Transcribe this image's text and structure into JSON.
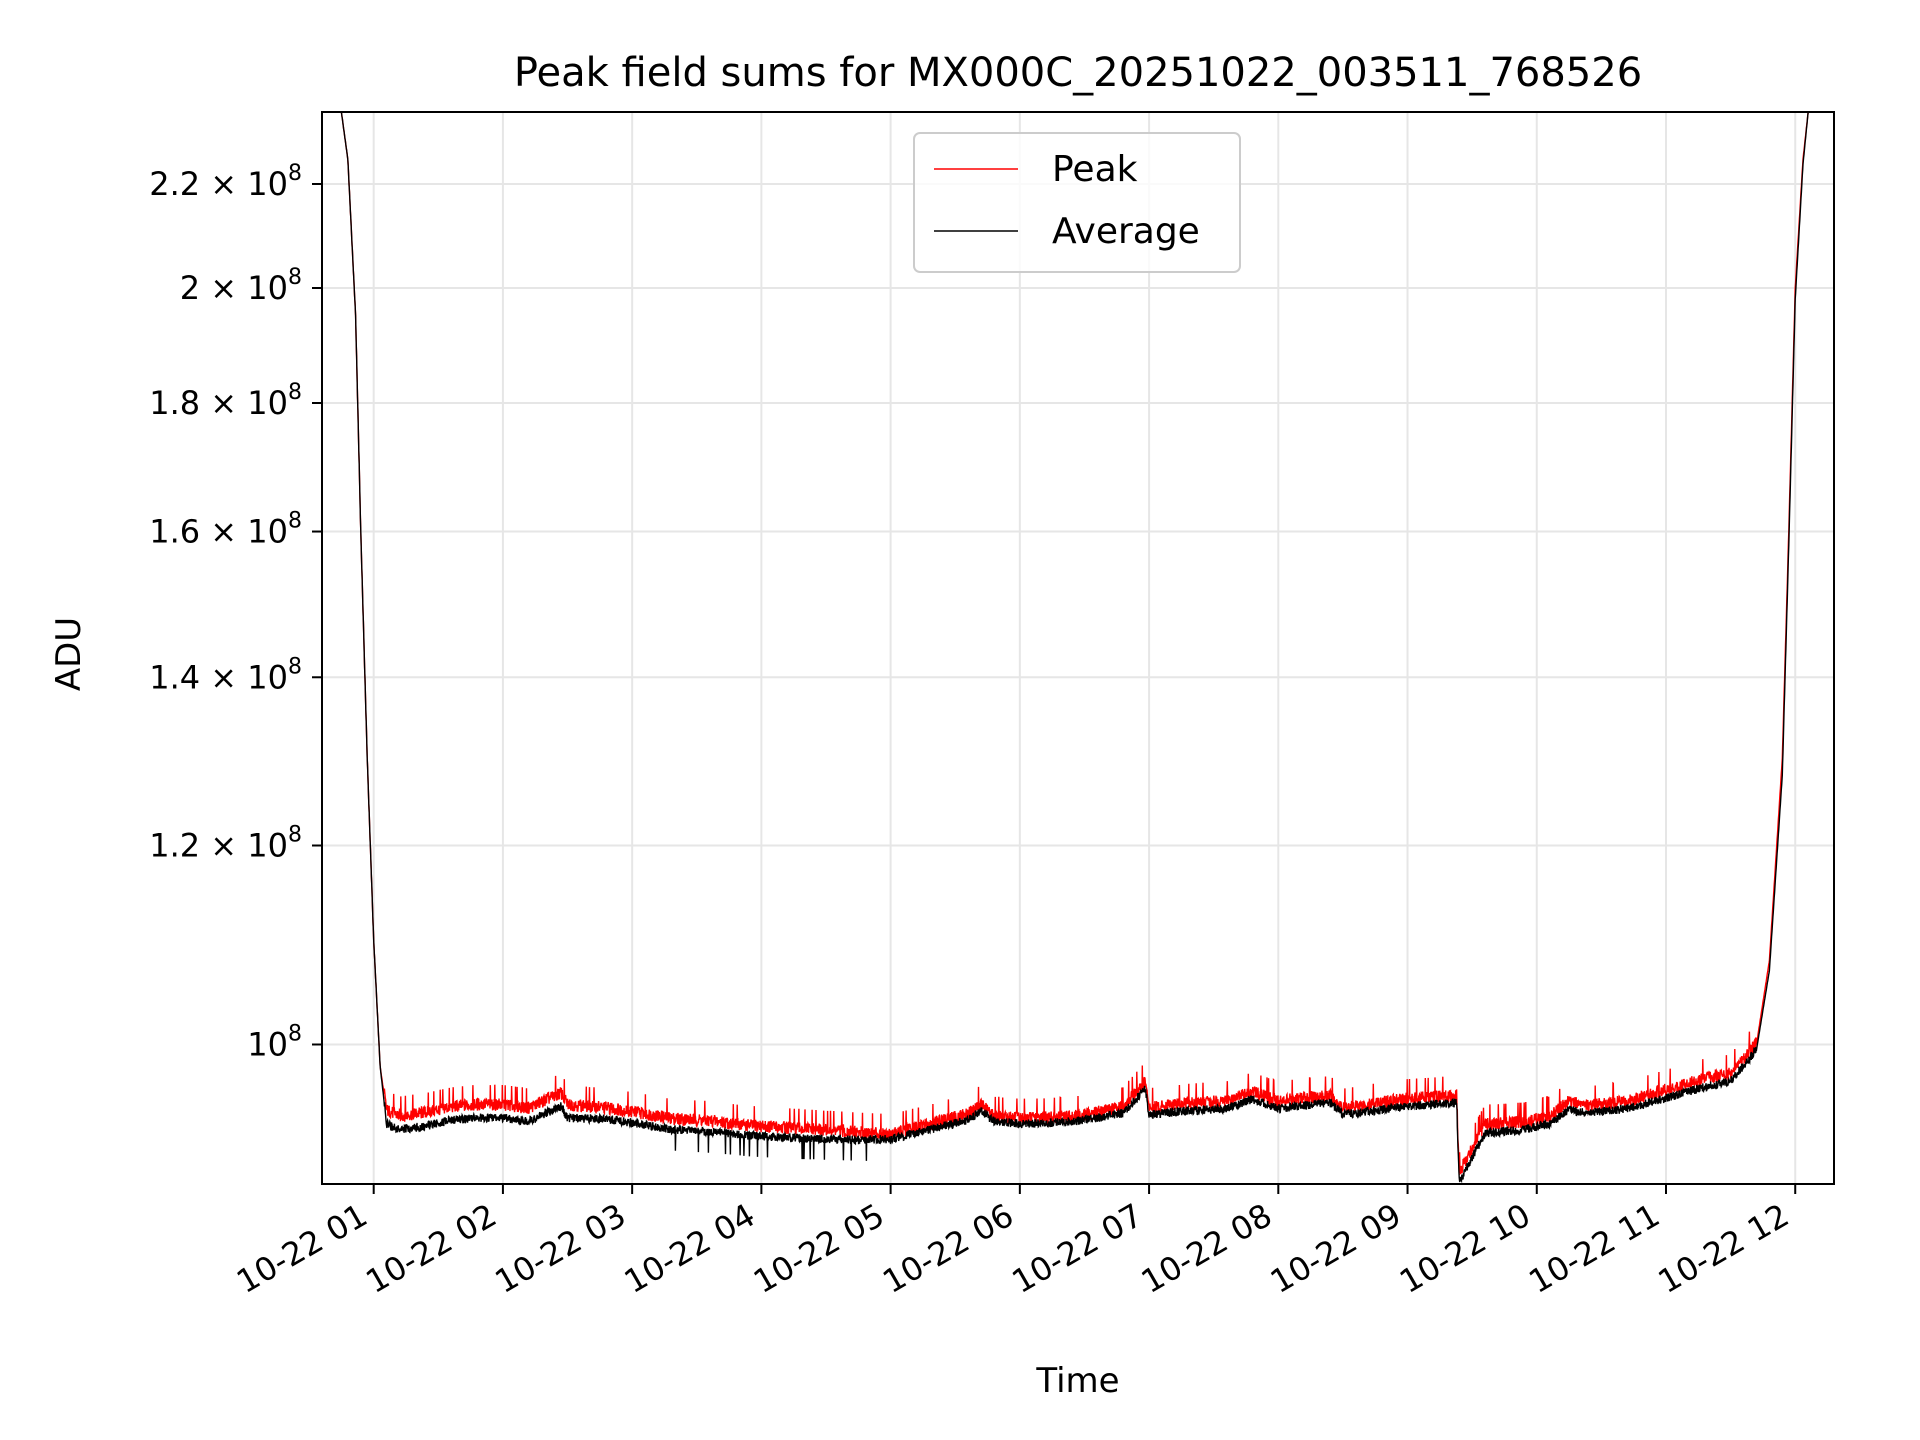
{
  "chart_data": {
    "type": "line",
    "title": "Peak field sums for MX000C_20251022_003511_768526",
    "xlabel": "Time",
    "ylabel": "ADU",
    "yscale": "log",
    "ylim": [
      88000000,
      235000000
    ],
    "xlim": [
      0.6,
      12.3
    ],
    "x_unit": "hours since 2025-10-22 00:00",
    "grid": true,
    "legend_position": "upper center",
    "x_ticks": [
      {
        "value": 1,
        "label": "10-22 01"
      },
      {
        "value": 2,
        "label": "10-22 02"
      },
      {
        "value": 3,
        "label": "10-22 03"
      },
      {
        "value": 4,
        "label": "10-22 04"
      },
      {
        "value": 5,
        "label": "10-22 05"
      },
      {
        "value": 6,
        "label": "10-22 06"
      },
      {
        "value": 7,
        "label": "10-22 07"
      },
      {
        "value": 8,
        "label": "10-22 08"
      },
      {
        "value": 9,
        "label": "10-22 09"
      },
      {
        "value": 10,
        "label": "10-22 10"
      },
      {
        "value": 11,
        "label": "10-22 11"
      },
      {
        "value": 12,
        "label": "10-22 12"
      }
    ],
    "y_ticks": [
      {
        "value": 100000000,
        "mantissa": "",
        "exp": "8"
      },
      {
        "value": 120000000,
        "mantissa": "1.2",
        "exp": "8"
      },
      {
        "value": 140000000,
        "mantissa": "1.4",
        "exp": "8"
      },
      {
        "value": 160000000,
        "mantissa": "1.6",
        "exp": "8"
      },
      {
        "value": 180000000,
        "mantissa": "1.8",
        "exp": "8"
      },
      {
        "value": 200000000,
        "mantissa": "2",
        "exp": "8"
      },
      {
        "value": 220000000,
        "mantissa": "2.2",
        "exp": "8"
      }
    ],
    "series": [
      {
        "name": "Peak",
        "color": "#ff0000",
        "points": [
          [
            0.6,
            235000000
          ],
          [
            0.75,
            235000000
          ],
          [
            0.8,
            225000000
          ],
          [
            0.86,
            195000000
          ],
          [
            0.9,
            160000000
          ],
          [
            0.95,
            130000000
          ],
          [
            1.0,
            110000000
          ],
          [
            1.05,
            98000000
          ],
          [
            1.1,
            94000000
          ],
          [
            1.2,
            93500000
          ],
          [
            1.4,
            93800000
          ],
          [
            1.6,
            94300000
          ],
          [
            1.8,
            94500000
          ],
          [
            2.0,
            94500000
          ],
          [
            2.2,
            94200000
          ],
          [
            2.45,
            95500000
          ],
          [
            2.5,
            94500000
          ],
          [
            2.8,
            94200000
          ],
          [
            3.0,
            93900000
          ],
          [
            3.3,
            93300000
          ],
          [
            3.6,
            93100000
          ],
          [
            3.9,
            92700000
          ],
          [
            4.2,
            92500000
          ],
          [
            4.5,
            92300000
          ],
          [
            4.8,
            92100000
          ],
          [
            5.0,
            92000000
          ],
          [
            5.3,
            92800000
          ],
          [
            5.6,
            93700000
          ],
          [
            5.7,
            94500000
          ],
          [
            5.8,
            93500000
          ],
          [
            6.0,
            93300000
          ],
          [
            6.3,
            93400000
          ],
          [
            6.5,
            93600000
          ],
          [
            6.8,
            94300000
          ],
          [
            6.97,
            96500000
          ],
          [
            7.0,
            94200000
          ],
          [
            7.3,
            94600000
          ],
          [
            7.6,
            94800000
          ],
          [
            7.8,
            95600000
          ],
          [
            8.0,
            94800000
          ],
          [
            8.4,
            95300000
          ],
          [
            8.5,
            94200000
          ],
          [
            8.8,
            94700000
          ],
          [
            9.0,
            95000000
          ],
          [
            9.38,
            95300000
          ],
          [
            9.4,
            88800000
          ],
          [
            9.6,
            92800000
          ],
          [
            9.9,
            93000000
          ],
          [
            10.1,
            93500000
          ],
          [
            10.25,
            94800000
          ],
          [
            10.4,
            94400000
          ],
          [
            10.7,
            94800000
          ],
          [
            11.0,
            95800000
          ],
          [
            11.3,
            96800000
          ],
          [
            11.5,
            97200000
          ],
          [
            11.7,
            100000000
          ],
          [
            11.8,
            108000000
          ],
          [
            11.9,
            130000000
          ],
          [
            11.95,
            160000000
          ],
          [
            12.0,
            200000000
          ],
          [
            12.06,
            225000000
          ],
          [
            12.1,
            235000000
          ],
          [
            12.3,
            235000000
          ]
        ]
      },
      {
        "name": "Average",
        "color": "#000000",
        "points": [
          [
            0.6,
            235000000
          ],
          [
            0.75,
            235000000
          ],
          [
            0.8,
            225000000
          ],
          [
            0.86,
            195000000
          ],
          [
            0.9,
            160000000
          ],
          [
            0.95,
            130000000
          ],
          [
            1.0,
            110000000
          ],
          [
            1.05,
            98000000
          ],
          [
            1.1,
            93000000
          ],
          [
            1.2,
            92500000
          ],
          [
            1.4,
            92800000
          ],
          [
            1.6,
            93300000
          ],
          [
            1.8,
            93500000
          ],
          [
            2.0,
            93500000
          ],
          [
            2.2,
            93200000
          ],
          [
            2.45,
            94500000
          ],
          [
            2.5,
            93500000
          ],
          [
            2.8,
            93400000
          ],
          [
            3.0,
            93100000
          ],
          [
            3.3,
            92500000
          ],
          [
            3.6,
            92300000
          ],
          [
            3.9,
            92000000
          ],
          [
            4.2,
            91800000
          ],
          [
            4.5,
            91700000
          ],
          [
            4.8,
            91600000
          ],
          [
            5.0,
            91700000
          ],
          [
            5.3,
            92500000
          ],
          [
            5.6,
            93300000
          ],
          [
            5.7,
            94100000
          ],
          [
            5.8,
            93200000
          ],
          [
            6.0,
            93000000
          ],
          [
            6.3,
            93100000
          ],
          [
            6.5,
            93300000
          ],
          [
            6.8,
            93900000
          ],
          [
            6.97,
            96000000
          ],
          [
            7.0,
            93800000
          ],
          [
            7.3,
            94100000
          ],
          [
            7.6,
            94300000
          ],
          [
            7.8,
            95100000
          ],
          [
            8.0,
            94300000
          ],
          [
            8.4,
            94800000
          ],
          [
            8.5,
            93800000
          ],
          [
            8.8,
            94200000
          ],
          [
            9.0,
            94500000
          ],
          [
            9.38,
            94800000
          ],
          [
            9.4,
            88200000
          ],
          [
            9.6,
            92200000
          ],
          [
            9.9,
            92500000
          ],
          [
            10.1,
            93000000
          ],
          [
            10.25,
            94200000
          ],
          [
            10.4,
            93900000
          ],
          [
            10.7,
            94300000
          ],
          [
            11.0,
            95200000
          ],
          [
            11.3,
            96200000
          ],
          [
            11.5,
            96700000
          ],
          [
            11.7,
            99500000
          ],
          [
            11.8,
            107000000
          ],
          [
            11.9,
            128000000
          ],
          [
            11.95,
            158000000
          ],
          [
            12.0,
            198000000
          ],
          [
            12.06,
            224000000
          ],
          [
            12.1,
            235000000
          ],
          [
            12.3,
            235000000
          ]
        ]
      }
    ]
  }
}
